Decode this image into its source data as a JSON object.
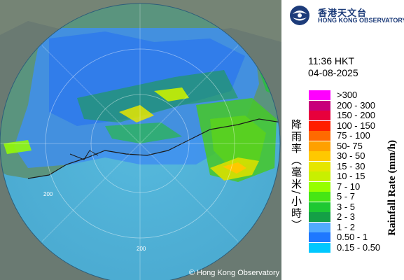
{
  "header": {
    "org_name_zh": "香港天文台",
    "org_name_en": "HONG KONG OBSERVATORY"
  },
  "timestamp": {
    "time": "11:36 HKT",
    "date": "04-08-2025"
  },
  "legend": {
    "title_zh": "降雨率（毫米/小時）",
    "title_en": "Rainfall Rate (mm/h)",
    "items": [
      {
        "label": ">300",
        "color": "#ff00ff"
      },
      {
        "label": "200 - 300",
        "color": "#c8007a"
      },
      {
        "label": "150 - 200",
        "color": "#e8003c"
      },
      {
        "label": "100 - 150",
        "color": "#ff1e00"
      },
      {
        "label": "75 - 100",
        "color": "#ff6a00"
      },
      {
        "label": "50- 75",
        "color": "#ffa000"
      },
      {
        "label": "30 - 50",
        "color": "#ffc800"
      },
      {
        "label": "15 - 30",
        "color": "#e6e600"
      },
      {
        "label": "10 - 15",
        "color": "#c8f000"
      },
      {
        "label": "7 - 10",
        "color": "#96ff00"
      },
      {
        "label": "5 - 7",
        "color": "#46e614"
      },
      {
        "label": "3 - 5",
        "color": "#1ec832"
      },
      {
        "label": "2 - 3",
        "color": "#14a046"
      },
      {
        "label": "1 - 2",
        "color": "#50aaff"
      },
      {
        "label": "0.50 - 1",
        "color": "#1e78ff"
      },
      {
        "label": "0.15 - 0.50",
        "color": "#00c8ff"
      }
    ]
  },
  "map": {
    "range_ring_labels": [
      "200",
      "200"
    ],
    "copyright": "Hong Kong Observatory",
    "copyright_symbol": "©"
  }
}
